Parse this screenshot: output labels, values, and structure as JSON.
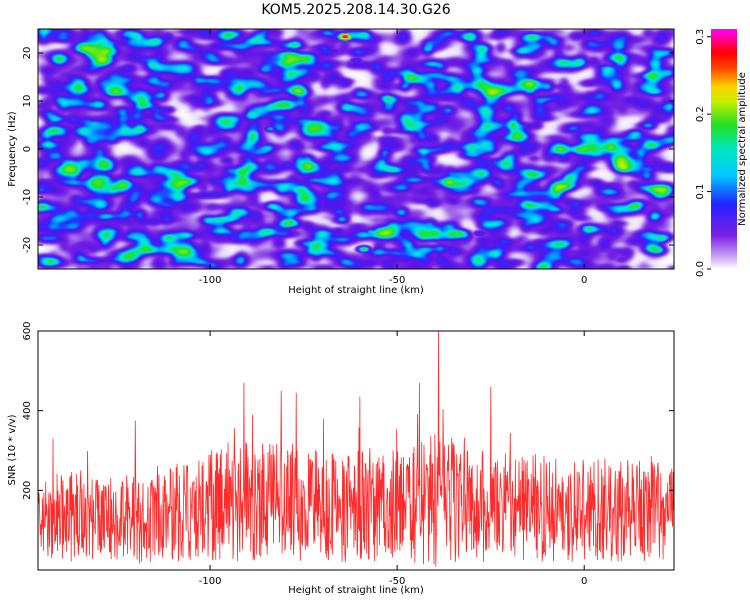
{
  "page_title": "KOM5.2025.208.14.30.G26",
  "chart_data": [
    {
      "type": "heatmap",
      "title": "KOM5.2025.208.14.30.G26",
      "xlabel": "Height of straight line (km)",
      "ylabel": "Frequency (Hz)",
      "xlim": [
        -146,
        24
      ],
      "ylim": [
        -25,
        25
      ],
      "x_ticks": [
        -100,
        -50,
        0
      ],
      "x_tick_labels": [
        "-100",
        "-50",
        "0"
      ],
      "y_ticks": [
        -20,
        -10,
        0,
        10,
        20
      ],
      "y_tick_labels": [
        "-20",
        "-10",
        "0",
        "10",
        "20"
      ],
      "colorbar": {
        "label": "Normalized spectral amplitude",
        "range": [
          0,
          0.31
        ],
        "ticks": [
          0,
          0.1,
          0.2,
          0.3
        ],
        "tick_labels": [
          "0.0",
          "0.1",
          "0.2",
          "0.3"
        ]
      },
      "colors": {
        "low": "#ffffff",
        "mid_low": "#9a5ce6",
        "mid": "#6a17e0",
        "blue": "#2030ff",
        "cyan": "#00e0ff",
        "green": "#18e030",
        "red": "#ff0000",
        "magenta": "#ff00ff"
      },
      "peaks": [
        {
          "x": -64,
          "y": 23.5,
          "value": 0.31
        },
        {
          "x": -59,
          "y": -20.8,
          "value": 0.14
        },
        {
          "x": -57,
          "y": -17.2,
          "value": 0.11
        },
        {
          "x": -84,
          "y": 4.3,
          "value": 0.1
        },
        {
          "x": -90,
          "y": -8,
          "value": 0.08
        },
        {
          "x": -28,
          "y": -17.5,
          "value": 0.08
        },
        {
          "x": -27,
          "y": -20,
          "value": 0.07
        },
        {
          "x": -42,
          "y": 3.0,
          "value": 0.08
        },
        {
          "x": -61,
          "y": 18.5,
          "value": 0.08
        },
        {
          "x": -67,
          "y": 20.5,
          "value": 0.07
        }
      ]
    },
    {
      "type": "line",
      "xlabel": "Height of straight line (km)",
      "ylabel": "SNR (10 * v/v)",
      "xlim": [
        -146,
        24
      ],
      "ylim": [
        0,
        600
      ],
      "x_ticks": [
        -100,
        -50,
        0
      ],
      "x_tick_labels": [
        "-100",
        "-50",
        "0"
      ],
      "y_ticks": [
        200,
        400,
        600
      ],
      "y_tick_labels": [
        "200",
        "400",
        "600"
      ],
      "grid": false,
      "series": [
        {
          "color": "#ff2a2a",
          "envelope": {
            "x": [
              -146,
              -130,
              -116,
              -104,
              -92,
              -80,
              -70,
              -60,
              -50,
              -40,
              -30,
              -18,
              -4,
              10,
              24
            ],
            "mean": [
              130,
              135,
              125,
              155,
              175,
              170,
              160,
              165,
              165,
              175,
              165,
              160,
              150,
              150,
              145
            ],
            "spread": [
              110,
              115,
              110,
              130,
              160,
              150,
              140,
              150,
              140,
              175,
              150,
              140,
              130,
              130,
              125
            ]
          },
          "peaks": [
            {
              "x": -39,
              "y": 600
            },
            {
              "x": -44,
              "y": 470
            },
            {
              "x": -91,
              "y": 470
            },
            {
              "x": -25,
              "y": 460
            },
            {
              "x": -81,
              "y": 450
            },
            {
              "x": -77,
              "y": 445
            },
            {
              "x": -60,
              "y": 435
            },
            {
              "x": -120,
              "y": 375
            },
            {
              "x": -142,
              "y": 330
            }
          ]
        }
      ]
    }
  ]
}
